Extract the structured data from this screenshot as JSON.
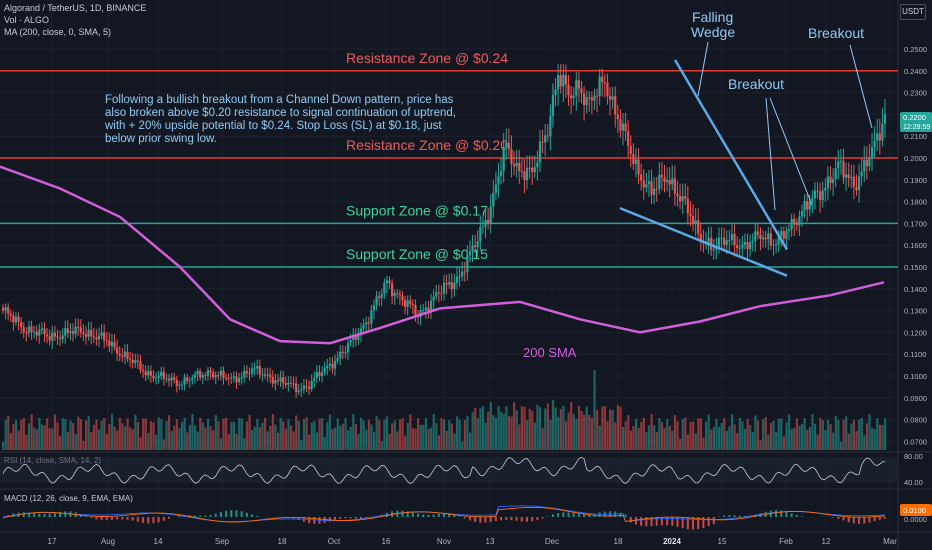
{
  "header": {
    "symbol_line": "Algorand / TetherUS, 1D, BINANCE",
    "vol_line": "Vol · ALGO",
    "ma_line": "MA (200, close, 0, SMA, 5)",
    "currency_button": "USDT"
  },
  "price_axis": [
    "0.2500",
    "0.2400",
    "0.2300",
    "0.2200",
    "0.2100",
    "0.2000",
    "0.1900",
    "0.1800",
    "0.1700",
    "0.1600",
    "0.1500",
    "0.1400",
    "0.1300",
    "0.1200",
    "0.1100",
    "0.1000",
    "0.0900",
    "0.0800",
    "0.0700"
  ],
  "price_axis_values": [
    0.25,
    0.24,
    0.23,
    0.22,
    0.21,
    0.2,
    0.19,
    0.18,
    0.17,
    0.16,
    0.15,
    0.14,
    0.13,
    0.12,
    0.11,
    0.1,
    0.09,
    0.08,
    0.07
  ],
  "current_price": {
    "value": "0.2200",
    "countdown": "12:29:59"
  },
  "time_axis": [
    "17",
    "Aug",
    "14",
    "Sep",
    "18",
    "Oct",
    "16",
    "Nov",
    "13",
    "Dec",
    "18",
    "2024",
    "15",
    "Feb",
    "12",
    "Mar"
  ],
  "time_axis_bold": "2024",
  "zones": [
    {
      "label": "Resistance Zone @ $0.24",
      "price": 0.24,
      "color": "#e53935",
      "text_color": "#f05a5a"
    },
    {
      "label": "Resistance Zone @ $0.20",
      "price": 0.2,
      "color": "#e53935",
      "text_color": "#f05a5a"
    },
    {
      "label": "Support Zone @ $0.17",
      "price": 0.17,
      "color": "#26a69a",
      "text_color": "#44d1a0"
    },
    {
      "label": "Support Zone @ $0.15",
      "price": 0.15,
      "color": "#26a69a",
      "text_color": "#44d1a0"
    }
  ],
  "annotations": {
    "commentary": [
      "Following a bullish breakout from a Channel Down pattern, price has",
      "also broken above $0.20 resistance to signal continuation of uptrend,",
      "with + 20% upside potential to $0.24. Stop Loss (SL) at $0.18, just",
      "below prior swing low."
    ],
    "falling_wedge": [
      "Falling",
      "Wedge"
    ],
    "breakout_1": "Breakout",
    "breakout_2": "Breakout",
    "sma_label": "200 SMA"
  },
  "rsi": {
    "label": "RSI (14, close, SMA, 14, 2)",
    "axis": [
      "80.00",
      "40.00"
    ]
  },
  "macd": {
    "label": "MACD (12, 26, close, 9, EMA, EMA)",
    "axis": [
      "0.0100",
      "0.0000"
    ]
  },
  "colors": {
    "up": "#26a69a",
    "down": "#ef5350",
    "sma": "#d35edc",
    "wedge": "#5aa9e6",
    "annotation": "#8ecbf5",
    "background": "#131722"
  }
}
